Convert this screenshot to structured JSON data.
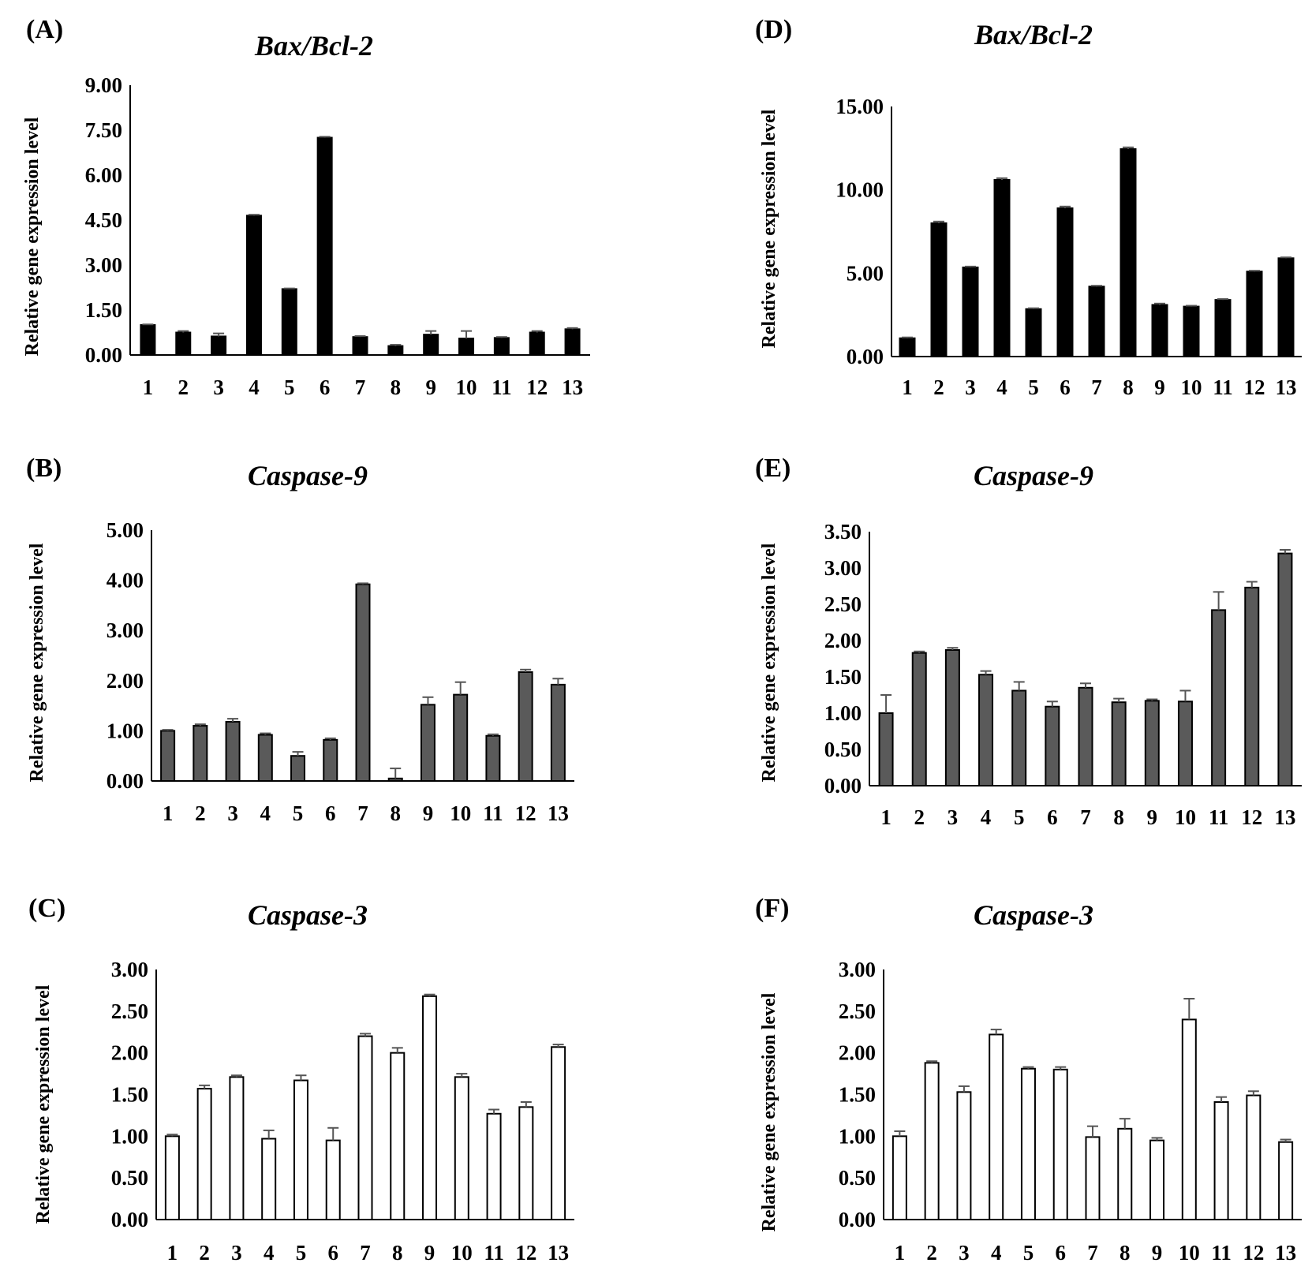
{
  "chart_data": [
    {
      "panel": "(A)",
      "type": "bar",
      "title": "Bax/Bcl-2",
      "ylabel": "Relative gene expression level",
      "xlabel": "",
      "categories": [
        "1",
        "2",
        "3",
        "4",
        "5",
        "6",
        "7",
        "8",
        "9",
        "10",
        "11",
        "12",
        "13"
      ],
      "values": [
        1.0,
        0.75,
        0.62,
        4.65,
        2.2,
        7.25,
        0.6,
        0.3,
        0.68,
        0.55,
        0.57,
        0.75,
        0.86
      ],
      "errors": [
        0.02,
        0.05,
        0.1,
        0.03,
        0.02,
        0.03,
        0.03,
        0.04,
        0.12,
        0.25,
        0.03,
        0.05,
        0.04
      ],
      "ylim": [
        0,
        9
      ],
      "yticks": [
        "0.00",
        "1.50",
        "3.00",
        "4.50",
        "6.00",
        "7.50",
        "9.00"
      ],
      "colors": {
        "fill": "#000000",
        "stroke": "#000000",
        "error": "#555555"
      }
    },
    {
      "panel": "(B)",
      "type": "bar",
      "title": "Caspase-9",
      "ylabel": "Relative gene expression level",
      "xlabel": "",
      "categories": [
        "1",
        "2",
        "3",
        "4",
        "5",
        "6",
        "7",
        "8",
        "9",
        "10",
        "11",
        "12",
        "13"
      ],
      "values": [
        1.0,
        1.1,
        1.18,
        0.92,
        0.5,
        0.82,
        3.92,
        0.05,
        1.52,
        1.72,
        0.9,
        2.17,
        1.92
      ],
      "errors": [
        0.02,
        0.03,
        0.06,
        0.03,
        0.08,
        0.03,
        0.02,
        0.2,
        0.15,
        0.25,
        0.03,
        0.05,
        0.12
      ],
      "ylim": [
        0,
        5
      ],
      "yticks": [
        "0.00",
        "1.00",
        "2.00",
        "3.00",
        "4.00",
        "5.00"
      ],
      "colors": {
        "fill": "#5a5a5a",
        "stroke": "#000000",
        "error": "#555555"
      }
    },
    {
      "panel": "(C)",
      "type": "bar",
      "title": "Caspase-3",
      "ylabel": "Relative gene expression level",
      "xlabel": "",
      "categories": [
        "1",
        "2",
        "3",
        "4",
        "5",
        "6",
        "7",
        "8",
        "9",
        "10",
        "11",
        "12",
        "13"
      ],
      "values": [
        1.0,
        1.57,
        1.71,
        0.97,
        1.67,
        0.95,
        2.2,
        2.0,
        2.68,
        1.71,
        1.27,
        1.35,
        2.07
      ],
      "errors": [
        0.02,
        0.04,
        0.02,
        0.1,
        0.06,
        0.15,
        0.03,
        0.06,
        0.02,
        0.04,
        0.05,
        0.06,
        0.03
      ],
      "ylim": [
        0,
        3
      ],
      "yticks": [
        "0.00",
        "0.50",
        "1.00",
        "1.50",
        "2.00",
        "2.50",
        "3.00"
      ],
      "colors": {
        "fill": "#ffffff",
        "stroke": "#000000",
        "error": "#555555"
      }
    },
    {
      "panel": "(D)",
      "type": "bar",
      "title": "Bax/Bcl-2",
      "ylabel": "Relative gene expression level",
      "xlabel": "",
      "categories": [
        "1",
        "2",
        "3",
        "4",
        "5",
        "6",
        "7",
        "8",
        "9",
        "10",
        "11",
        "12",
        "13"
      ],
      "values": [
        1.1,
        8.0,
        5.35,
        10.6,
        2.85,
        8.9,
        4.2,
        12.45,
        3.1,
        3.0,
        3.4,
        5.1,
        5.9
      ],
      "errors": [
        0.05,
        0.1,
        0.05,
        0.1,
        0.05,
        0.1,
        0.05,
        0.1,
        0.08,
        0.05,
        0.05,
        0.05,
        0.05
      ],
      "ylim": [
        0,
        15
      ],
      "yticks": [
        "0.00",
        "5.00",
        "10.00",
        "15.00"
      ],
      "colors": {
        "fill": "#000000",
        "stroke": "#000000",
        "error": "#555555"
      }
    },
    {
      "panel": "(E)",
      "type": "bar",
      "title": "Caspase-9",
      "ylabel": "Relative gene expression level",
      "xlabel": "",
      "categories": [
        "1",
        "2",
        "3",
        "4",
        "5",
        "6",
        "7",
        "8",
        "9",
        "10",
        "11",
        "12",
        "13"
      ],
      "values": [
        1.0,
        1.83,
        1.87,
        1.53,
        1.31,
        1.09,
        1.35,
        1.15,
        1.17,
        1.16,
        2.42,
        2.73,
        3.2
      ],
      "errors": [
        0.25,
        0.02,
        0.03,
        0.05,
        0.12,
        0.07,
        0.06,
        0.05,
        0.02,
        0.15,
        0.25,
        0.08,
        0.05
      ],
      "ylim": [
        0,
        3.5
      ],
      "yticks": [
        "0.00",
        "0.50",
        "1.00",
        "1.50",
        "2.00",
        "2.50",
        "3.00",
        "3.50"
      ],
      "colors": {
        "fill": "#5a5a5a",
        "stroke": "#000000",
        "error": "#555555"
      }
    },
    {
      "panel": "(F)",
      "type": "bar",
      "title": "Caspase-3",
      "ylabel": "Relative gene expression level",
      "xlabel": "",
      "categories": [
        "1",
        "2",
        "3",
        "4",
        "5",
        "6",
        "7",
        "8",
        "9",
        "10",
        "11",
        "12",
        "13"
      ],
      "values": [
        1.0,
        1.88,
        1.53,
        2.22,
        1.81,
        1.8,
        0.99,
        1.09,
        0.95,
        2.4,
        1.41,
        1.49,
        0.93
      ],
      "errors": [
        0.06,
        0.02,
        0.07,
        0.06,
        0.02,
        0.03,
        0.13,
        0.12,
        0.03,
        0.25,
        0.06,
        0.05,
        0.03
      ],
      "ylim": [
        0,
        3
      ],
      "yticks": [
        "0.00",
        "0.50",
        "1.00",
        "1.50",
        "2.00",
        "2.50",
        "3.00"
      ],
      "colors": {
        "fill": "#ffffff",
        "stroke": "#000000",
        "error": "#555555"
      }
    }
  ]
}
